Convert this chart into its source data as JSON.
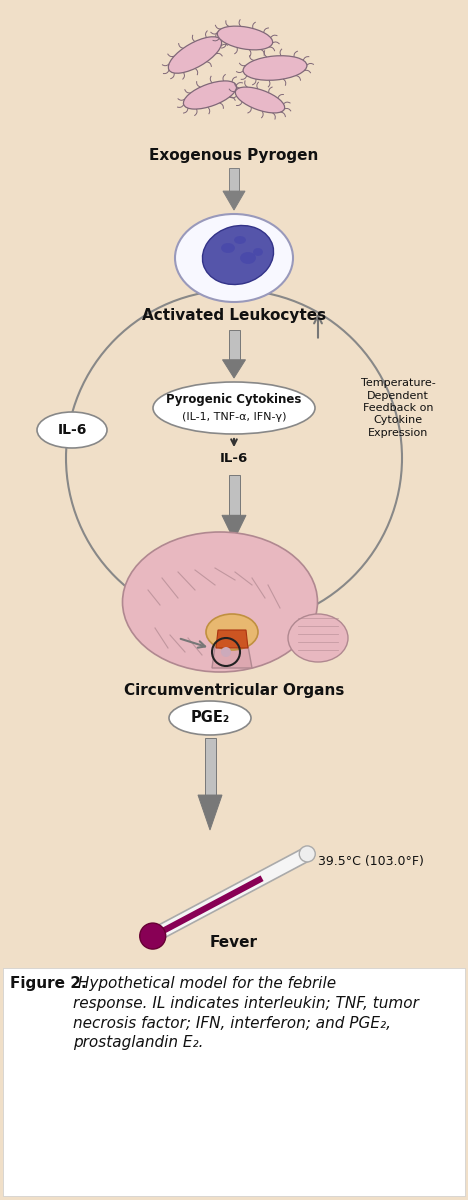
{
  "bg_color": "#f0dfc8",
  "text_color": "#111111",
  "exogenous_pyrogen_label": "Exogenous Pyrogen",
  "activated_leukocytes_label": "Activated Leukocytes",
  "pyrogenic_cytokines_line1": "Pyrogenic Cytokines",
  "pyrogenic_cytokines_line2": "(IL-1, TNF-α, IFN-γ)",
  "il6_below_label": "IL-6",
  "il6_oval_label": "IL-6",
  "temperature_feedback_label": "Temperature-\nDependent\nFeedback on\nCytokine\nExpression",
  "circumventricular_label": "Circumventricular Organs",
  "pge2_label": "PGE₂",
  "fever_label": "Fever",
  "temperature_label": "39.5°C (103.0°F)",
  "figure_caption_bold": "Figure 2.",
  "figure_caption_italic": " Hypothetical model for the febrile\nresponse. IL indicates interleukin; TNF, tumor\nnecrosis factor; IFN, interferon; and PGE₂,\nprostaglandin E₂.",
  "bacteria_color": "#e8b8c8",
  "bacteria_outline": "#806878",
  "cell_fill": "#f8f8ff",
  "cell_outline": "#9999bb",
  "nucleus_fill": "#5555aa",
  "nucleus_outline": "#333388",
  "arrow_light": "#b8b8b8",
  "arrow_dark": "#777777",
  "arrow_dark2": "#444444",
  "oval_fill": "#ffffff",
  "oval_outline": "#888888",
  "brain_fill": "#e8b8c0",
  "brain_outline": "#b08890",
  "hypothal_fill": "#cc5522",
  "hypothal_ring": "#dd9966",
  "therm_fill": "#f5f5f5",
  "therm_outline": "#aaaaaa",
  "therm_mercury": "#880055",
  "therm_bulb": "#880055",
  "caption_bg": "#ffffff",
  "big_circle_color": "#888888"
}
